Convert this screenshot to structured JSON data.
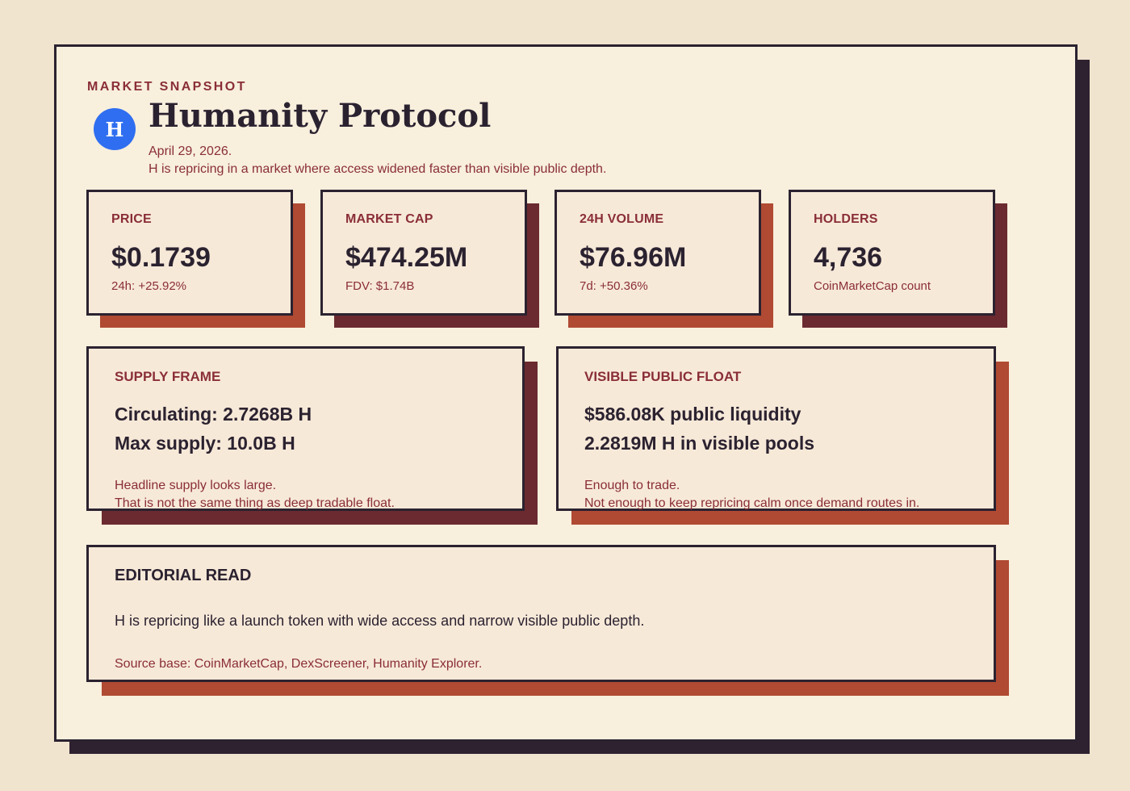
{
  "header": {
    "eyebrow": "MARKET SNAPSHOT",
    "logo_letter": "H",
    "title": "Humanity Protocol",
    "date": "April 29, 2026.",
    "subtitle": "H is repricing in a market where access widened faster than visible public depth."
  },
  "stats": [
    {
      "label": "PRICE",
      "value": "$0.1739",
      "sub": "24h: +25.92%"
    },
    {
      "label": "MARKET CAP",
      "value": "$474.25M",
      "sub": "FDV: $1.74B"
    },
    {
      "label": "24H VOLUME",
      "value": "$76.96M",
      "sub": "7d: +50.36%"
    },
    {
      "label": "HOLDERS",
      "value": "4,736",
      "sub": "CoinMarketCap count"
    }
  ],
  "panels": {
    "supply": {
      "label": "SUPPLY FRAME",
      "line1": "Circulating: 2.7268B H",
      "line2": "Max supply: 10.0B H",
      "note1": "Headline supply looks large.",
      "note2": "That is not the same thing as deep tradable float."
    },
    "float": {
      "label": "VISIBLE PUBLIC FLOAT",
      "line1": "$586.08K public liquidity",
      "line2": "2.2819M H in visible pools",
      "note1": "Enough to trade.",
      "note2": "Not enough to keep repricing calm once demand routes in."
    }
  },
  "editorial": {
    "label": "EDITORIAL READ",
    "body": "H is repricing like a launch token with wide access and narrow visible public depth.",
    "source": "Source base: CoinMarketCap, DexScreener, Humanity Explorer."
  },
  "colors": {
    "background": "#f0e4cf",
    "card": "#f8efdd",
    "box": "#f7e9d8",
    "ink": "#2b2230",
    "accent": "#8a2e36",
    "shadow_rust": "#b04a33",
    "shadow_maroon": "#6b2a30",
    "logo_blue": "#2f6ef0"
  }
}
